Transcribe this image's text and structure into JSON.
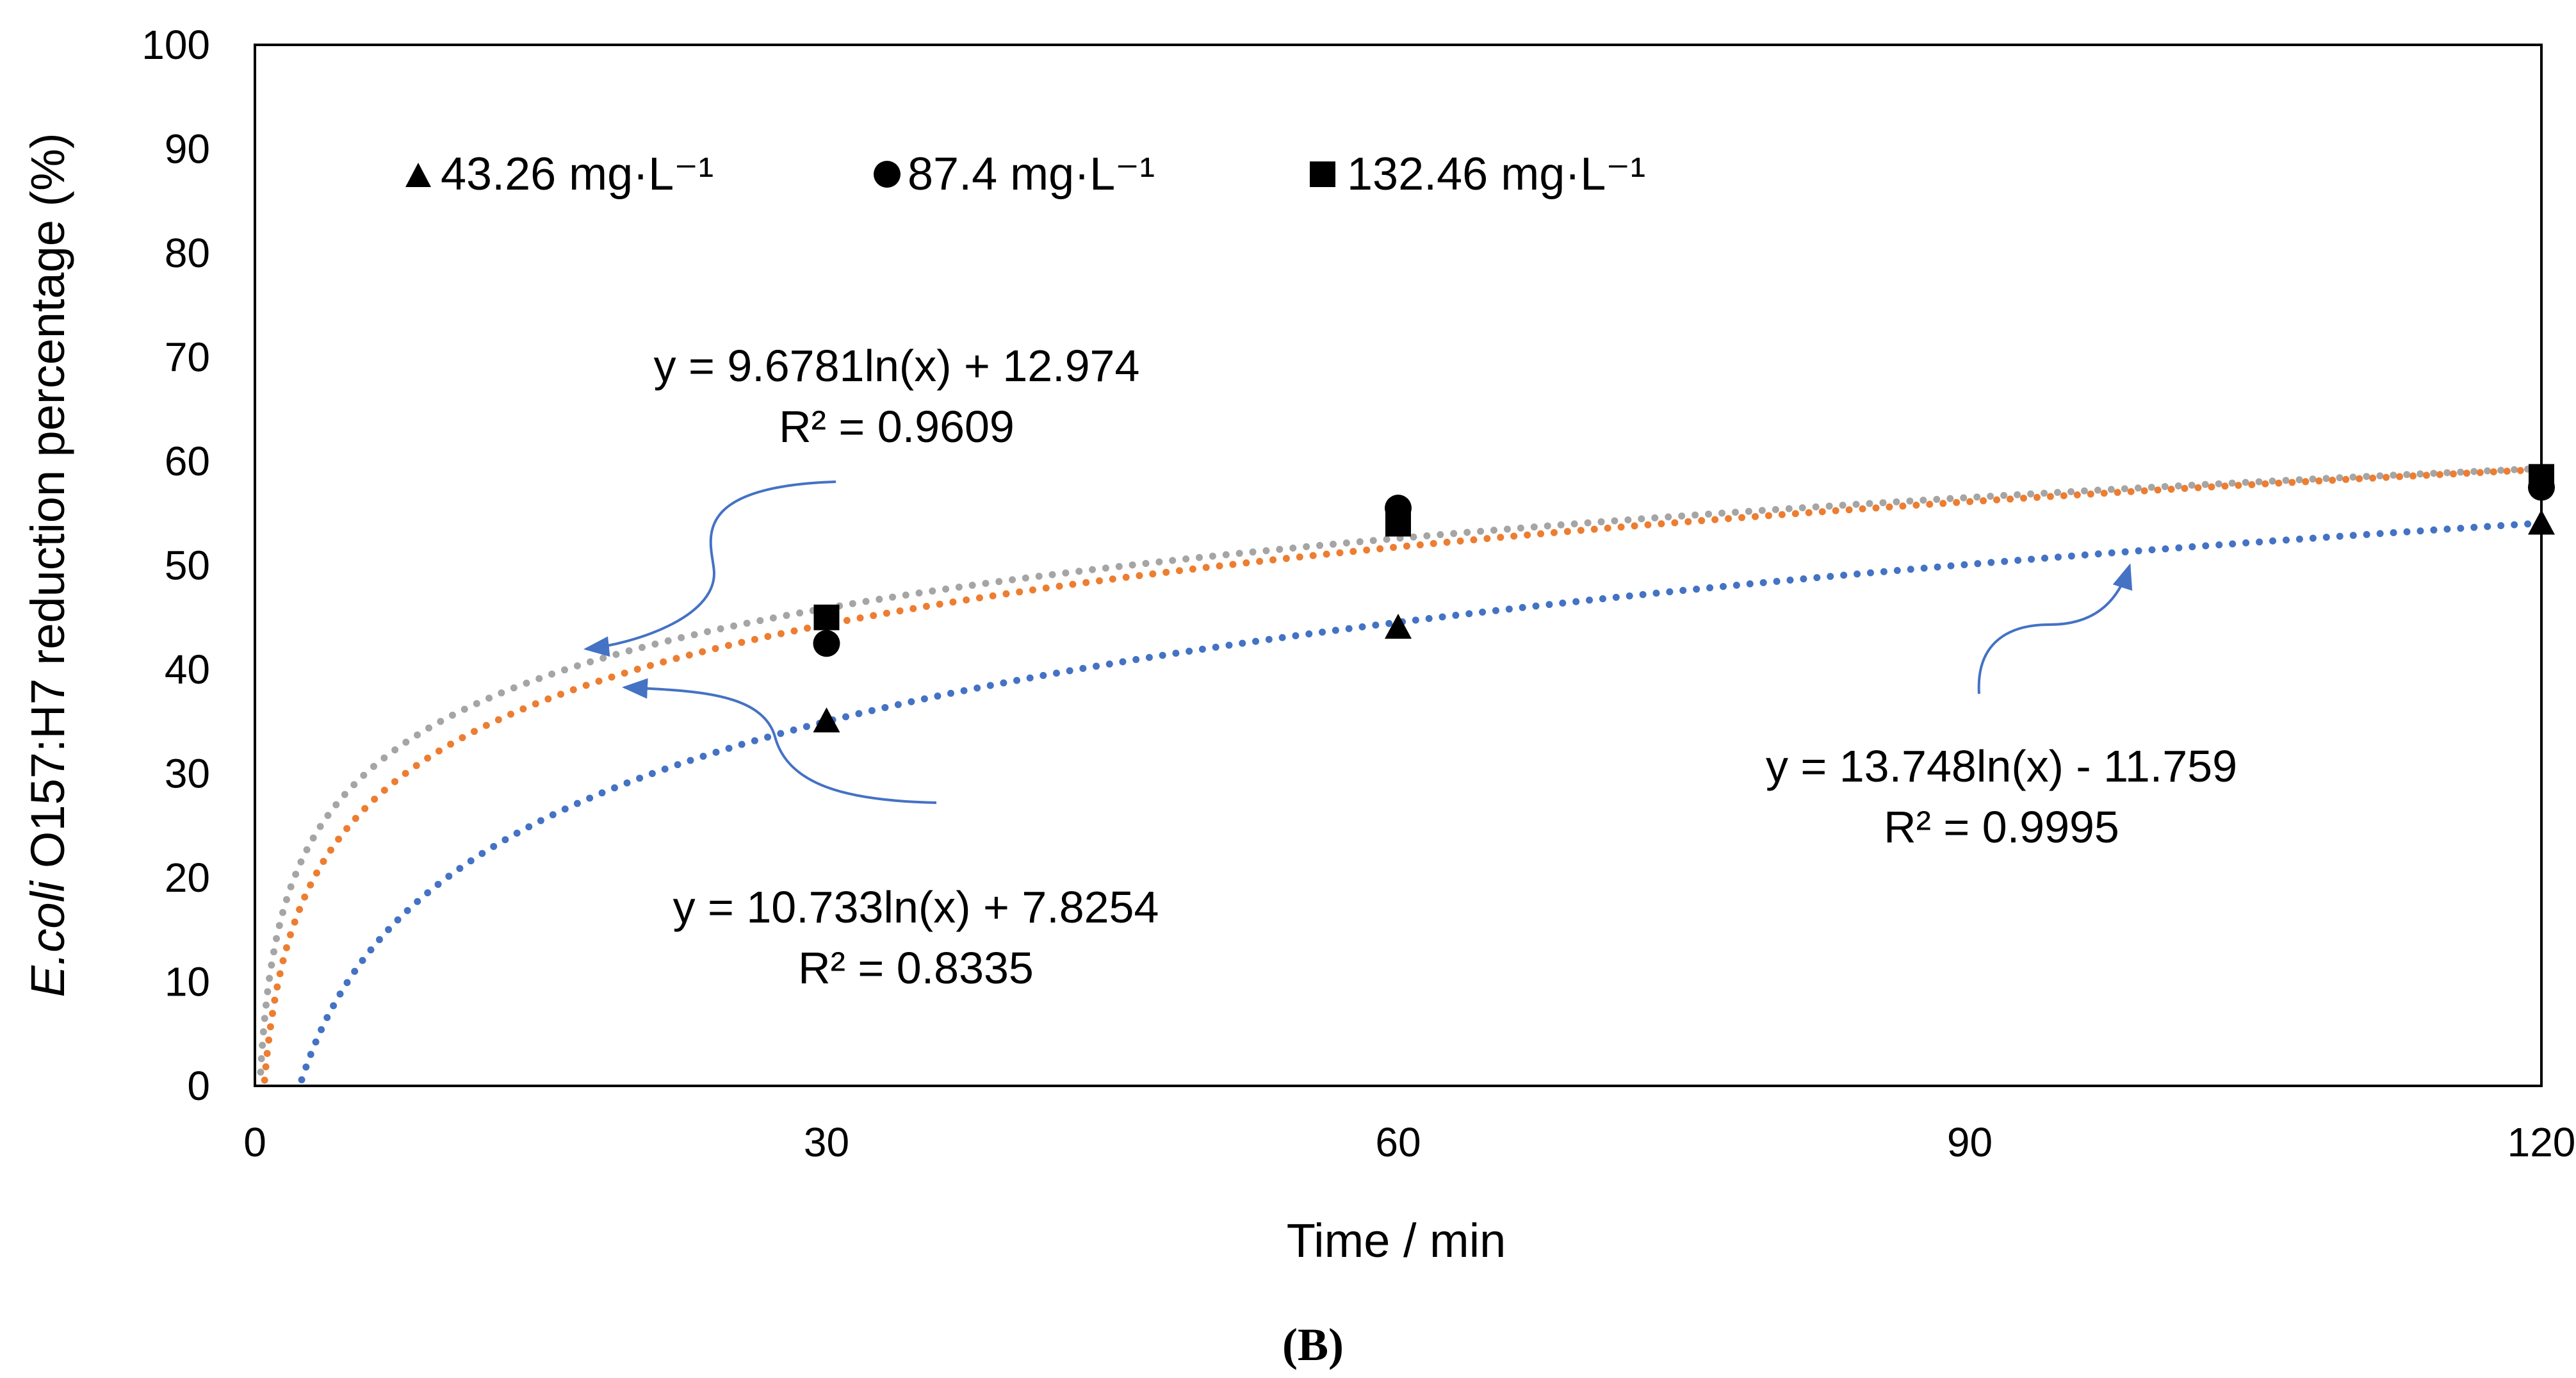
{
  "panel_label": "(B)",
  "colors": {
    "blue": "#4472C4",
    "orange": "#ED7D31",
    "gray": "#A5A5A5",
    "marker": "#000000"
  },
  "chart_data": {
    "type": "scatter",
    "title": "",
    "xlabel": "Time / min",
    "ylabel": {
      "italic": "E.coli",
      "rest": " O157:H7 reduction percentage (%)"
    },
    "xlim": [
      0,
      120
    ],
    "ylim": [
      0,
      100
    ],
    "xticks": [
      "0",
      "30",
      "60",
      "90",
      "120"
    ],
    "yticks": [
      "0",
      "10",
      "20",
      "30",
      "40",
      "50",
      "60",
      "70",
      "80",
      "90",
      "100"
    ],
    "grid": false,
    "legend_position": "top-left",
    "series": [
      {
        "name": "43.26 mg·L⁻¹",
        "marker": "triangle",
        "points": [
          [
            30,
            35
          ],
          [
            60,
            44
          ],
          [
            120,
            54
          ]
        ],
        "trendline": {
          "type": "log",
          "a": 13.748,
          "b": -11.759,
          "color": "blue"
        }
      },
      {
        "name": "87.4 mg·L⁻¹",
        "marker": "circle",
        "points": [
          [
            30,
            42.5
          ],
          [
            60,
            55.5
          ],
          [
            120,
            57.5
          ]
        ],
        "trendline": {
          "type": "log",
          "a": 10.733,
          "b": 7.8254,
          "color": "orange"
        }
      },
      {
        "name": "132.46 mg·L⁻¹",
        "marker": "square",
        "points": [
          [
            30,
            45
          ],
          [
            60,
            54
          ],
          [
            120,
            58.5
          ]
        ],
        "trendline": {
          "type": "log",
          "a": 9.6781,
          "b": 12.974,
          "color": "gray"
        }
      }
    ],
    "annotations": [
      {
        "equation": "y = 9.6781ln(x) + 12.974",
        "r2": "R² = 0.9609"
      },
      {
        "equation": "y = 10.733ln(x) + 7.8254",
        "r2": "R² = 0.8335"
      },
      {
        "equation": "y = 13.748ln(x) - 11.759",
        "r2": "R² = 0.9995"
      }
    ]
  }
}
